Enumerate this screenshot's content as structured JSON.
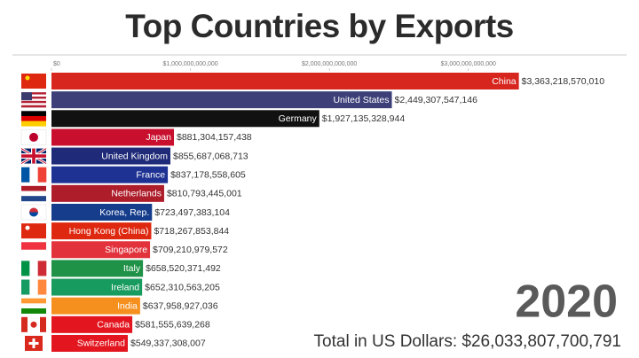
{
  "chart_data": {
    "type": "bar",
    "orientation": "horizontal",
    "title": "Top Countries by Exports",
    "categories": [
      "China",
      "United States",
      "Germany",
      "Japan",
      "United Kingdom",
      "France",
      "Netherlands",
      "Korea, Rep.",
      "Hong Kong (China)",
      "Singapore",
      "Italy",
      "Ireland",
      "India",
      "Canada",
      "Switzerland"
    ],
    "values": [
      3363218570010,
      2449307547146,
      1927135328944,
      881304157438,
      855687068713,
      837178558605,
      810793445001,
      723497383104,
      718267853844,
      709210979572,
      658520371492,
      652310563205,
      637958927036,
      581555639268,
      549337308007
    ],
    "value_labels": [
      "$3,363,218,570,010",
      "$2,449,307,547,146",
      "$1,927,135,328,944",
      "$881,304,157,438",
      "$855,687,068,713",
      "$837,178,558,605",
      "$810,793,445,001",
      "$723,497,383,104",
      "$718,267,853,844",
      "$709,210,979,572",
      "$658,520,371,492",
      "$652,310,563,205",
      "$637,958,927,036",
      "$581,555,639,268",
      "$549,337,308,007"
    ],
    "colors": [
      "#d7261e",
      "#3d3f78",
      "#111111",
      "#c8102e",
      "#1f2a78",
      "#1e3293",
      "#ad1d2a",
      "#163d8c",
      "#de2910",
      "#e2323c",
      "#1f9247",
      "#179b5e",
      "#f5901f",
      "#e3161f",
      "#e3161f"
    ],
    "xlim": [
      0,
      4100000000000
    ],
    "xticks": [
      {
        "value": 0,
        "label": "$0"
      },
      {
        "value": 1000000000000,
        "label": "$1,000,000,000,000"
      },
      {
        "value": 2000000000000,
        "label": "$2,000,000,000,000"
      },
      {
        "value": 3000000000000,
        "label": "$3,000,000,000,000"
      }
    ],
    "year": "2020",
    "total_label": "Total in US Dollars: $26,033,807,700,791"
  }
}
